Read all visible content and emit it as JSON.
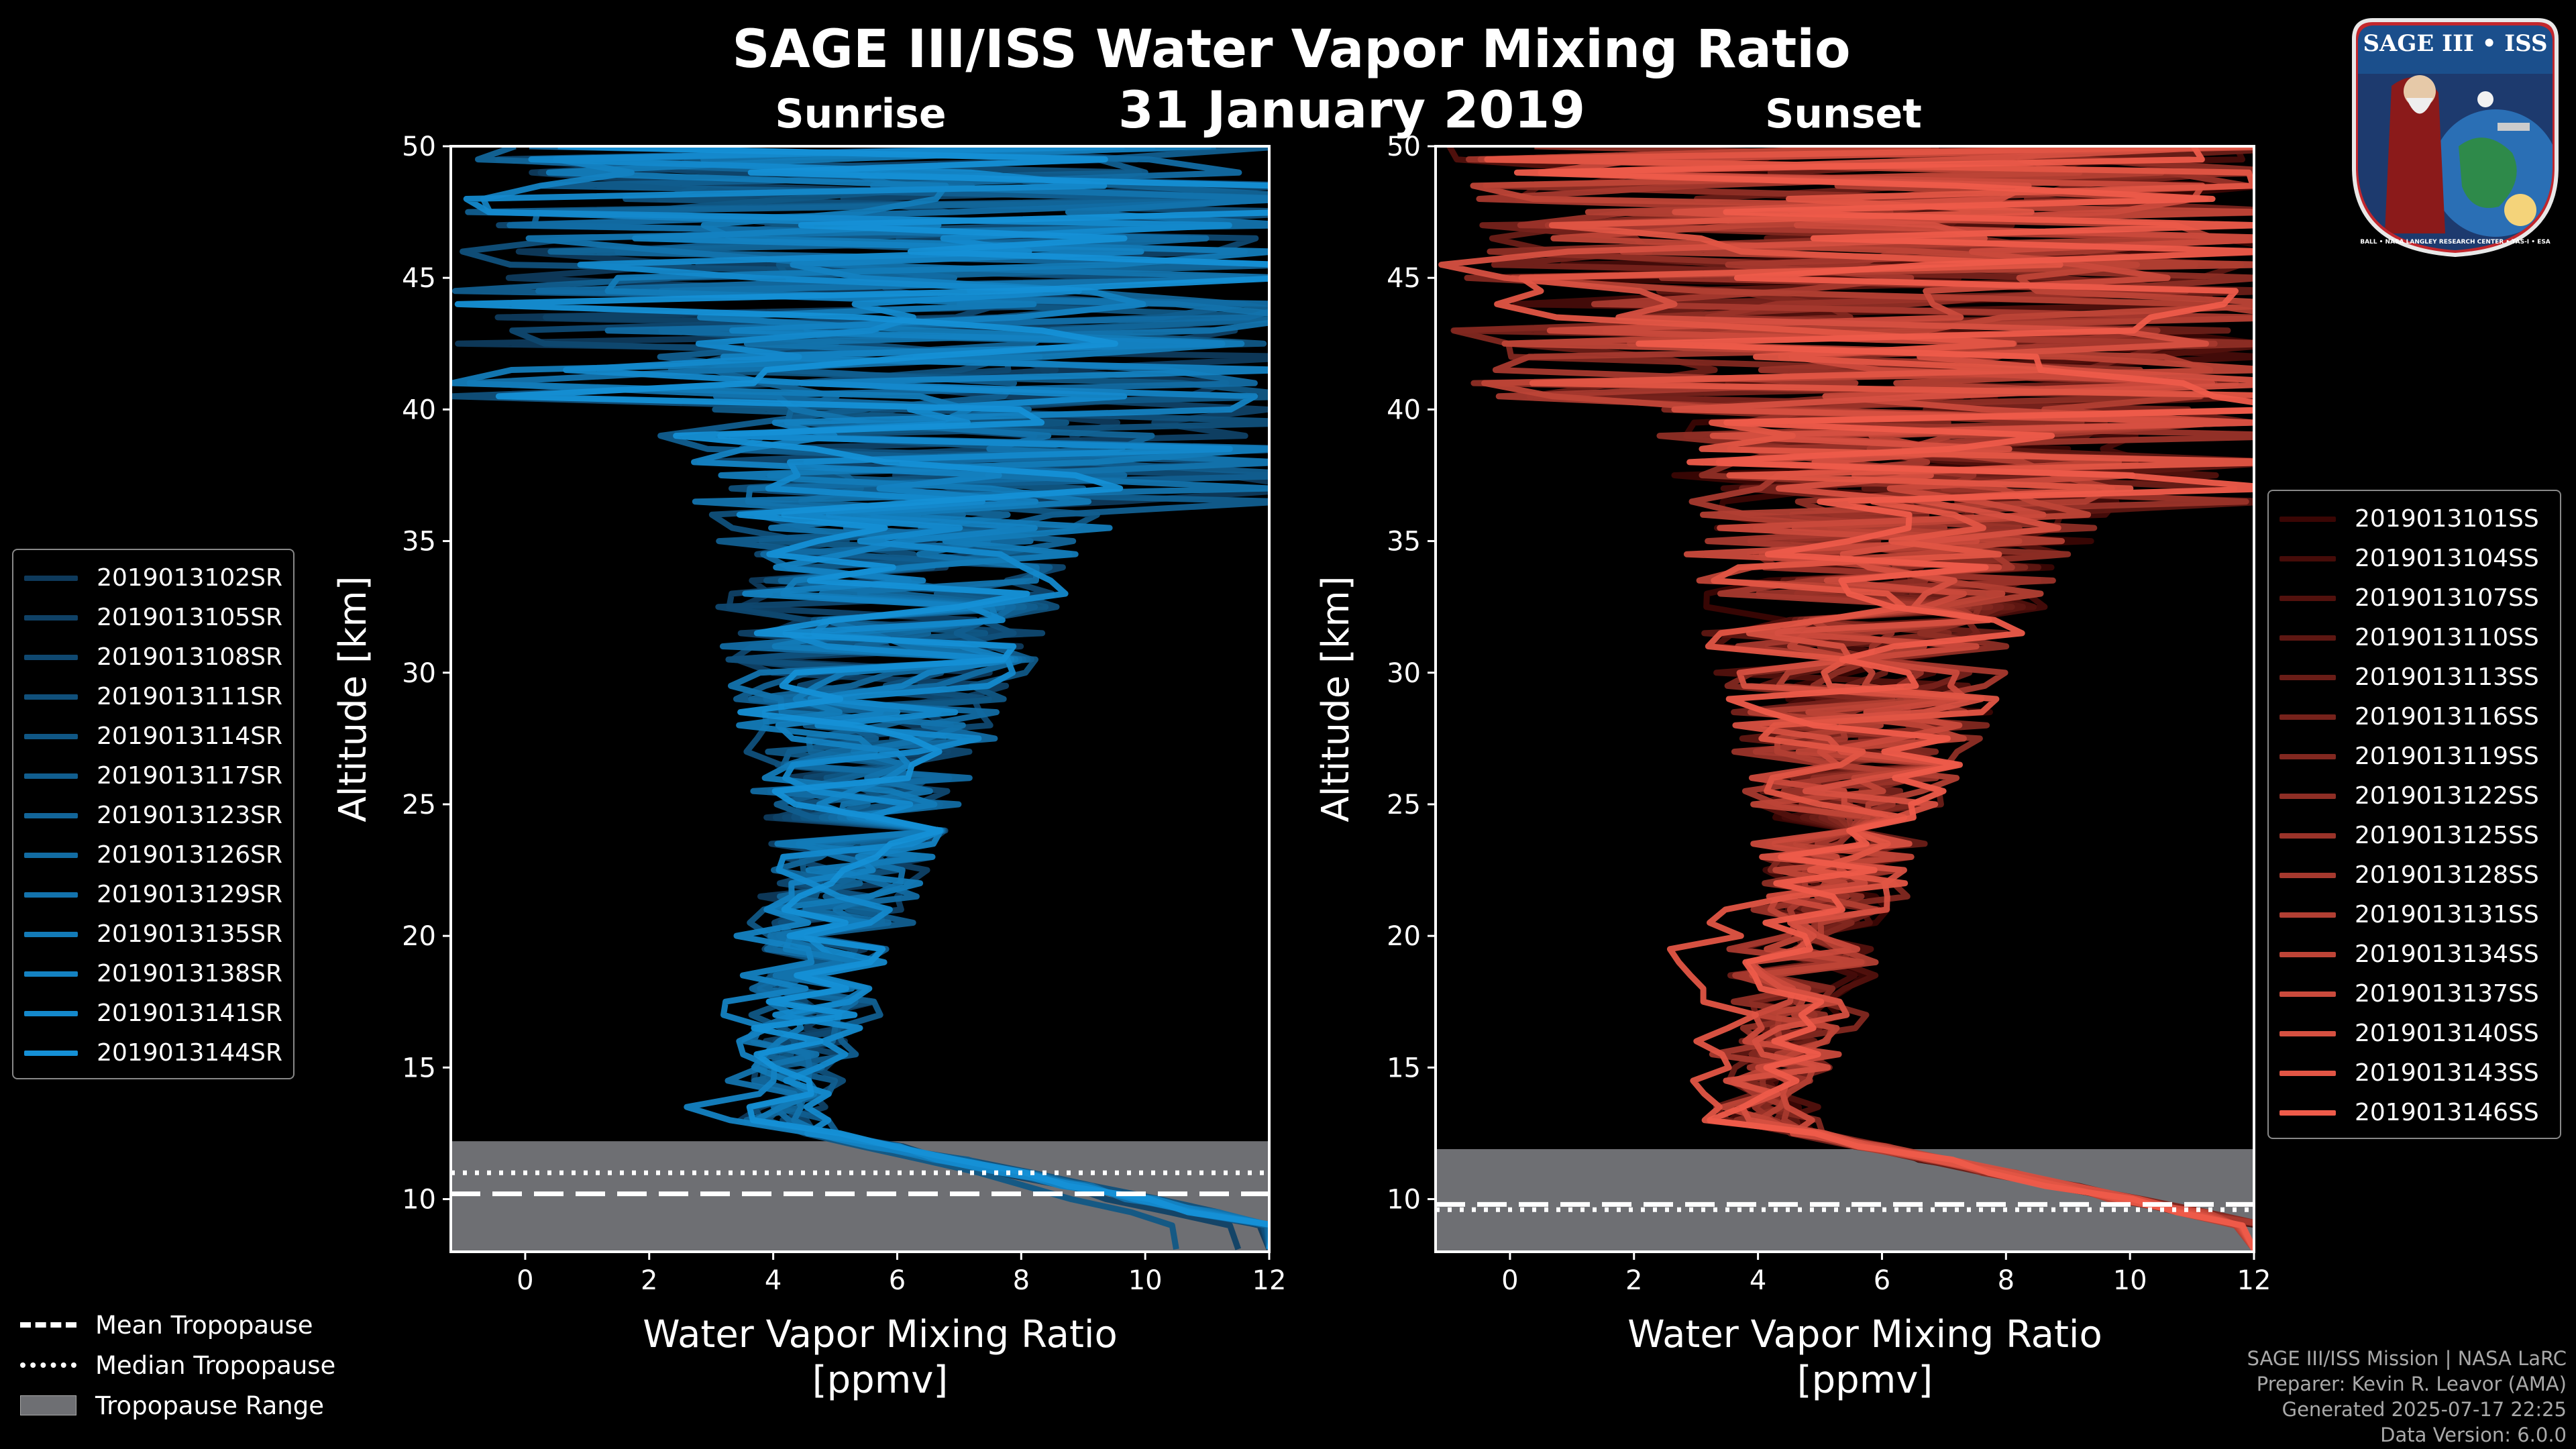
{
  "title": "SAGE III/ISS Water Vapor Mixing Ratio",
  "date": "31 January 2019",
  "logo": {
    "text_top": "SAGE III • ISS",
    "text_ring": "BALL • NASA LANGLEY RESEARCH CENTER • TAS-I • ESA"
  },
  "tropopause_legend": {
    "mean": "Mean Tropopause",
    "median": "Median Tropopause",
    "range": "Tropopause Range"
  },
  "footer": {
    "line1": "SAGE III/ISS Mission | NASA LaRC",
    "line2": "Preparer: Kevin R. Leavor (AMA)",
    "line3": "Generated 2025-07-17 22:25",
    "line4": "Data Version: 6.0.0"
  },
  "colors": {
    "sunrise": "#1590d6",
    "sunset": "#ee5b4a",
    "tropo_gray": "#6e6f73"
  },
  "chart_data": [
    {
      "type": "line",
      "subtitle": "Sunrise",
      "xlabel": "Water Vapor Mixing Ratio\n[ppmv]",
      "xlabel_line1": "Water Vapor Mixing Ratio",
      "xlabel_line2": "[ppmv]",
      "ylabel": "Altitude [km]",
      "xlim": [
        -1.2,
        12
      ],
      "ylim": [
        8,
        50
      ],
      "xticks": [
        0,
        2,
        4,
        6,
        8,
        10,
        12
      ],
      "yticks": [
        10,
        15,
        20,
        25,
        30,
        35,
        40,
        45,
        50
      ],
      "tropopause": {
        "range": [
          8,
          12.2
        ],
        "mean": 10.2,
        "median": 11.0
      },
      "line_color_from": "#0e3a5c",
      "line_color_to": "#1590d6",
      "series": [
        {
          "name": "2019013102SR",
          "strat_min": 3.6,
          "bottom_x": 12.0
        },
        {
          "name": "2019013105SR",
          "strat_min": 3.8,
          "bottom_x": 11.5
        },
        {
          "name": "2019013108SR",
          "strat_min": 3.7,
          "bottom_x": 12.0
        },
        {
          "name": "2019013111SR",
          "strat_min": 3.9,
          "bottom_x": 12.0
        },
        {
          "name": "2019013114SR",
          "strat_min": 3.5,
          "bottom_x": 10.5
        },
        {
          "name": "2019013117SR",
          "strat_min": 4.0,
          "bottom_x": 12.0
        },
        {
          "name": "2019013123SR",
          "strat_min": 3.6,
          "bottom_x": 12.0
        },
        {
          "name": "2019013126SR",
          "strat_min": 3.8,
          "bottom_x": 12.0
        },
        {
          "name": "2019013129SR",
          "strat_min": 3.4,
          "bottom_x": 12.0
        },
        {
          "name": "2019013135SR",
          "strat_min": 3.7,
          "bottom_x": 12.0
        },
        {
          "name": "2019013138SR",
          "strat_min": 2.8,
          "bottom_x": 12.0
        },
        {
          "name": "2019013141SR",
          "strat_min": 3.9,
          "bottom_x": 12.0
        },
        {
          "name": "2019013144SR",
          "strat_min": 3.6,
          "bottom_x": 12.0
        }
      ]
    },
    {
      "type": "line",
      "subtitle": "Sunset",
      "xlabel": "Water Vapor Mixing Ratio\n[ppmv]",
      "xlabel_line1": "Water Vapor Mixing Ratio",
      "xlabel_line2": "[ppmv]",
      "ylabel": "Altitude [km]",
      "xlim": [
        -1.2,
        12
      ],
      "ylim": [
        8,
        50
      ],
      "xticks": [
        0,
        2,
        4,
        6,
        8,
        10,
        12
      ],
      "yticks": [
        10,
        15,
        20,
        25,
        30,
        35,
        40,
        45,
        50
      ],
      "tropopause": {
        "range": [
          8,
          11.9
        ],
        "mean": 9.8,
        "median": 9.6
      },
      "line_color_from": "#3a0604",
      "line_color_to": "#ee5b4a",
      "series": [
        {
          "name": "2019013101SS",
          "strat_min": 3.8,
          "bottom_x": 12.0
        },
        {
          "name": "2019013104SS",
          "strat_min": 3.6,
          "bottom_x": 12.0
        },
        {
          "name": "2019013107SS",
          "strat_min": 3.9,
          "bottom_x": 12.0
        },
        {
          "name": "2019013110SS",
          "strat_min": 3.7,
          "bottom_x": 12.0
        },
        {
          "name": "2019013113SS",
          "strat_min": 3.5,
          "bottom_x": 12.0
        },
        {
          "name": "2019013116SS",
          "strat_min": 3.8,
          "bottom_x": 12.0
        },
        {
          "name": "2019013119SS",
          "strat_min": 4.0,
          "bottom_x": 12.0
        },
        {
          "name": "2019013122SS",
          "strat_min": 3.6,
          "bottom_x": 12.0
        },
        {
          "name": "2019013125SS",
          "strat_min": 3.7,
          "bottom_x": 12.0
        },
        {
          "name": "2019013128SS",
          "strat_min": 3.4,
          "bottom_x": 12.0
        },
        {
          "name": "2019013131SS",
          "strat_min": 3.9,
          "bottom_x": 12.0
        },
        {
          "name": "2019013134SS",
          "strat_min": 3.6,
          "bottom_x": 12.0
        },
        {
          "name": "2019013137SS",
          "strat_min": 3.8,
          "bottom_x": 12.0
        },
        {
          "name": "2019013140SS",
          "strat_min": 3.7,
          "bottom_x": 12.0
        },
        {
          "name": "2019013143SS",
          "strat_min": 2.5,
          "bottom_x": 12.0
        },
        {
          "name": "2019013146SS",
          "strat_min": 3.5,
          "bottom_x": 12.0
        }
      ]
    }
  ]
}
